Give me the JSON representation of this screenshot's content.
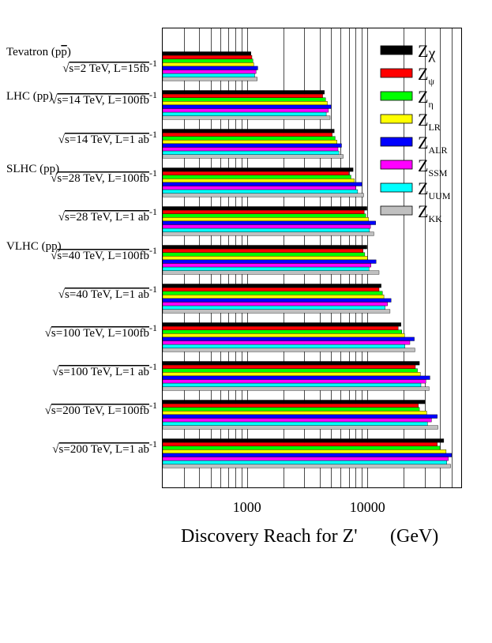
{
  "chart_data": {
    "type": "bar",
    "orientation": "horizontal",
    "xscale": "log",
    "xlim": [
      200,
      60000
    ],
    "xlabel": "Discovery Reach for Z'",
    "xlabel_units": "(GeV)",
    "x_tick_labels": [
      {
        "value": 1000,
        "label": "1000"
      },
      {
        "value": 10000,
        "label": "10000"
      }
    ],
    "group_headers": [
      {
        "before_row": 0,
        "text": "Tevatron (p",
        "bar_text": "p",
        "close": ")"
      },
      {
        "before_row": 1,
        "text": "LHC (pp)"
      },
      {
        "before_row": 3,
        "text": "SLHC (pp)"
      },
      {
        "before_row": 5,
        "text": "VLHC (pp)"
      }
    ],
    "rows": [
      {
        "energy": "s=2 TeV, L=15fb",
        "exp": "-1"
      },
      {
        "energy": "s=14 TeV, L=100fb",
        "exp": "-1"
      },
      {
        "energy": "s=14 TeV, L=1 ab",
        "exp": "-1"
      },
      {
        "energy": "s=28 TeV, L=100fb",
        "exp": "-1"
      },
      {
        "energy": "s=28 TeV, L=1 ab",
        "exp": "-1"
      },
      {
        "energy": "s=40 TeV, L=100fb",
        "exp": "-1"
      },
      {
        "energy": "s=40 TeV, L=1 ab",
        "exp": "-1"
      },
      {
        "energy": "s=100 TeV, L=100fb",
        "exp": "-1"
      },
      {
        "energy": "s=100 TeV, L=1 ab",
        "exp": "-1"
      },
      {
        "energy": "s=200 TeV, L=100fb",
        "exp": "-1"
      },
      {
        "energy": "s=200 TeV, L=1 ab",
        "exp": "-1"
      }
    ],
    "sqrt_symbol": "√",
    "series": [
      {
        "name": "Zχ",
        "base": "Z",
        "sub": "χ",
        "sub_style": "large",
        "color": "#000000",
        "values": [
          1080,
          4400,
          5300,
          7600,
          9900,
          9900,
          13000,
          19000,
          27000,
          30000,
          43000
        ]
      },
      {
        "name": "Zψ",
        "base": "Z",
        "sub": "ψ",
        "color": "#ff0000",
        "values": [
          1100,
          4250,
          5100,
          7000,
          9400,
          9200,
          12500,
          18000,
          25000,
          26500,
          38000
        ]
      },
      {
        "name": "Zη",
        "base": "Z",
        "sub": "η",
        "color": "#00ff00",
        "values": [
          1120,
          4500,
          5400,
          7300,
          9700,
          9500,
          13300,
          19300,
          26000,
          27000,
          40000
        ]
      },
      {
        "name": "ZLR",
        "base": "Z",
        "sub": "LR",
        "color": "#ffff00",
        "values": [
          1140,
          4650,
          5600,
          7800,
          10200,
          10000,
          13700,
          20300,
          27500,
          31000,
          45000
        ]
      },
      {
        "name": "ZALR",
        "base": "Z",
        "sub": "ALR",
        "color": "#0000ff",
        "values": [
          1230,
          5000,
          6100,
          9000,
          11700,
          11800,
          15700,
          24500,
          33000,
          38000,
          50000
        ]
      },
      {
        "name": "ZSSM",
        "base": "Z",
        "sub": "SSM",
        "color": "#ff00ff",
        "values": [
          1190,
          4750,
          5700,
          8000,
          10600,
          10700,
          14700,
          22500,
          30500,
          34000,
          47000
        ]
      },
      {
        "name": "ZUUM",
        "base": "Z",
        "sub": "UUM",
        "color": "#00ffff",
        "values": [
          1160,
          4550,
          5800,
          8300,
          10400,
          10300,
          14000,
          20500,
          27800,
          31500,
          45500
        ]
      },
      {
        "name": "ZKK",
        "base": "Z",
        "sub": "KK",
        "color": "#c0c0c0",
        "values": [
          1220,
          4900,
          6300,
          9300,
          11300,
          12500,
          15400,
          24800,
          32500,
          38500,
          49000
        ]
      }
    ]
  }
}
